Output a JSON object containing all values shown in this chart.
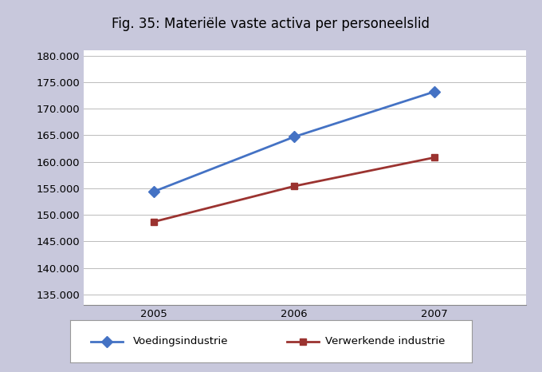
{
  "title": "Fig. 35: Materiële vaste activa per personeelslid",
  "years": [
    2005,
    2006,
    2007
  ],
  "voeding": [
    154400,
    164700,
    173200
  ],
  "verwerkend": [
    148700,
    155400,
    160800
  ],
  "voeding_color": "#4472C4",
  "verwerkend_color": "#9B3330",
  "background_outer": "#C8C8DC",
  "background_inner": "#FFFFFF",
  "legend_bg": "#FFFFFF",
  "ylim_min": 133000,
  "ylim_max": 181000,
  "yticks": [
    135000,
    140000,
    145000,
    150000,
    155000,
    160000,
    165000,
    170000,
    175000,
    180000
  ],
  "legend_voeding": "Voedingsindustrie",
  "legend_verwerkend": "Verwerkende industrie",
  "title_fontsize": 12,
  "tick_fontsize": 9.5,
  "legend_fontsize": 9.5
}
